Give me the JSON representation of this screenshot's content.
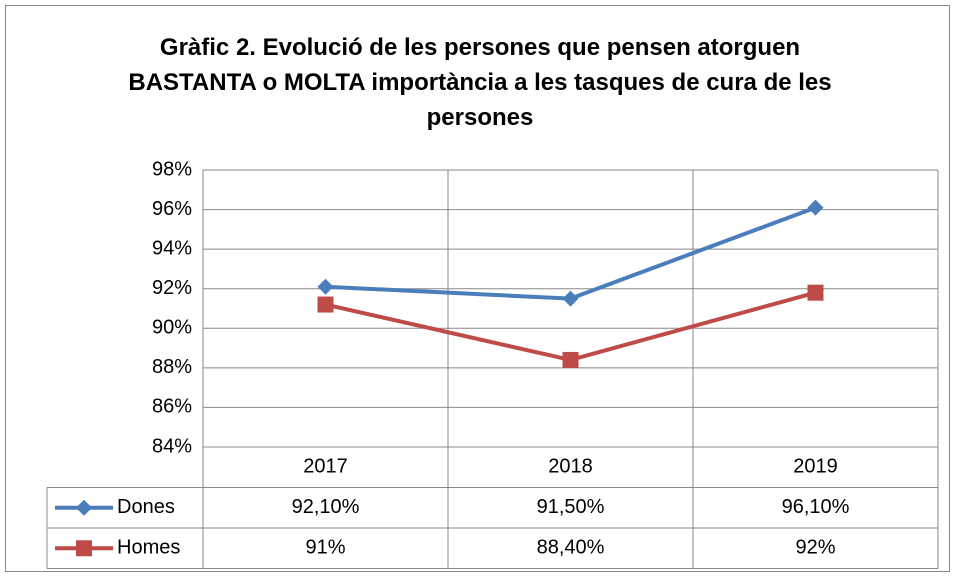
{
  "chart_data": {
    "type": "line",
    "title": "Gràfic 2. Evolució de les persones que pensen atorguen BASTANTA o MOLTA importància a les tasques de cura de les persones",
    "categories": [
      "2017",
      "2018",
      "2019"
    ],
    "series": [
      {
        "name": "Dones",
        "color": "#4a7ebb",
        "marker": "diamond",
        "values": [
          92.1,
          91.5,
          96.1
        ],
        "value_labels": [
          "92,10%",
          "91,50%",
          "96,10%"
        ]
      },
      {
        "name": "Homes",
        "color": "#be4b48",
        "marker": "square",
        "values": [
          91.2,
          88.4,
          91.8
        ],
        "value_labels": [
          "91%",
          "88,40%",
          "92%"
        ]
      }
    ],
    "ylim": [
      84,
      98
    ],
    "yticks": [
      {
        "value": 84,
        "label": "84%"
      },
      {
        "value": 86,
        "label": "86%"
      },
      {
        "value": 88,
        "label": "88%"
      },
      {
        "value": 90,
        "label": "90%"
      },
      {
        "value": 92,
        "label": "92%"
      },
      {
        "value": 94,
        "label": "94%"
      },
      {
        "value": 96,
        "label": "96%"
      },
      {
        "value": 98,
        "label": "98%"
      }
    ],
    "grid": true
  }
}
